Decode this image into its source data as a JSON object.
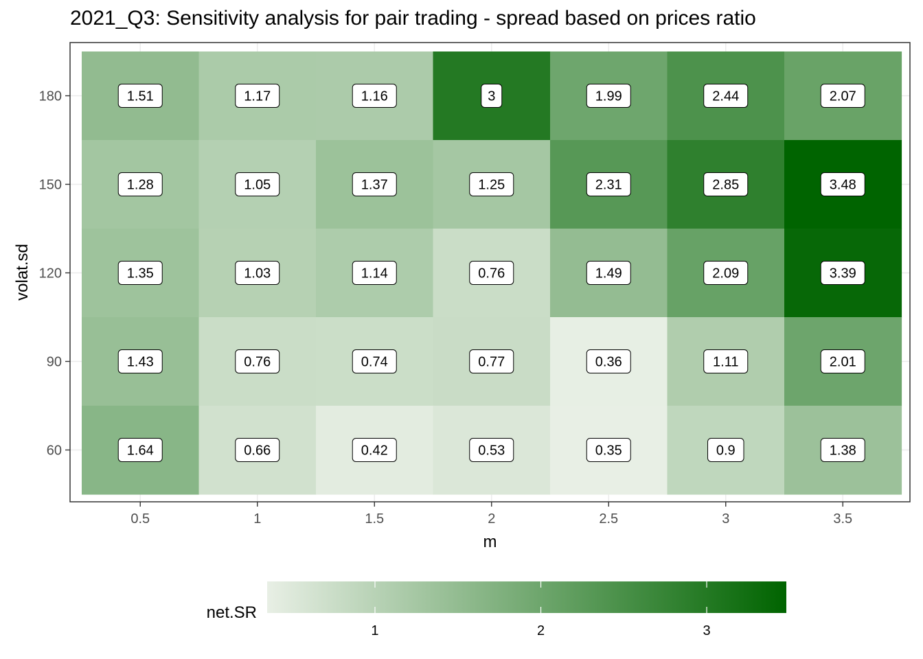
{
  "chart_data": {
    "type": "heatmap",
    "title": "2021_Q3: Sensitivity analysis for pair trading - spread based on prices ratio",
    "xlabel": "m",
    "ylabel": "volat.sd",
    "x": [
      "0.5",
      "1",
      "1.5",
      "2",
      "2.5",
      "3",
      "3.5"
    ],
    "y": [
      "180",
      "150",
      "120",
      "90",
      "60"
    ],
    "values": [
      [
        1.51,
        1.17,
        1.16,
        3,
        1.99,
        2.44,
        2.07
      ],
      [
        1.28,
        1.05,
        1.37,
        1.25,
        2.31,
        2.85,
        3.48
      ],
      [
        1.35,
        1.03,
        1.14,
        0.76,
        1.49,
        2.09,
        3.39
      ],
      [
        1.43,
        0.76,
        0.74,
        0.77,
        0.36,
        1.11,
        2.01
      ],
      [
        1.64,
        0.66,
        0.42,
        0.53,
        0.35,
        0.9,
        1.38
      ]
    ],
    "legend": {
      "title": "net.SR",
      "position": "bottom",
      "ticks": [
        "1",
        "2",
        "3"
      ],
      "range": [
        0.35,
        3.48
      ],
      "low_color": "#e8efe5",
      "high_color": "#006400"
    },
    "grid": true
  }
}
